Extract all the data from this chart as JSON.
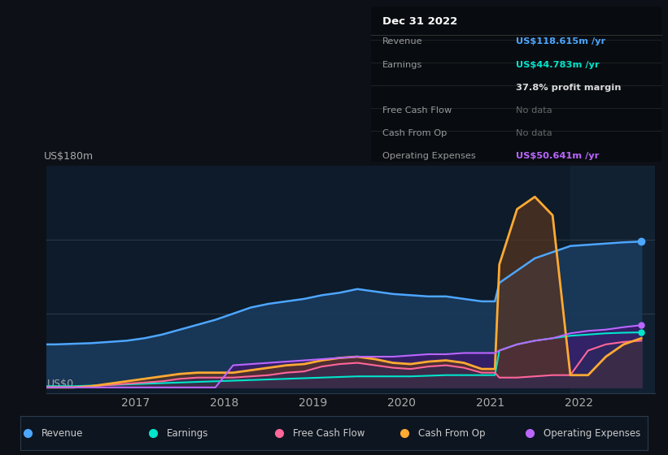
{
  "bg_color": "#0d1117",
  "chart_bg": "#0d1b2a",
  "title": "Dec 31 2022",
  "ylabel": "US$180m",
  "y0_label": "US$0",
  "x_ticks": [
    2017,
    2018,
    2019,
    2020,
    2021,
    2022
  ],
  "x_range": [
    2016.0,
    2022.85
  ],
  "y_range": [
    -5,
    180
  ],
  "legend": [
    {
      "label": "Revenue",
      "color": "#4da6ff"
    },
    {
      "label": "Earnings",
      "color": "#00e5cc"
    },
    {
      "label": "Free Cash Flow",
      "color": "#ff6699"
    },
    {
      "label": "Cash From Op",
      "color": "#ffaa33"
    },
    {
      "label": "Operating Expenses",
      "color": "#bb66ff"
    }
  ],
  "series": {
    "x": [
      2015.9,
      2016.1,
      2016.3,
      2016.5,
      2016.7,
      2016.9,
      2017.1,
      2017.3,
      2017.5,
      2017.7,
      2017.9,
      2018.1,
      2018.3,
      2018.5,
      2018.7,
      2018.9,
      2019.1,
      2019.3,
      2019.5,
      2019.7,
      2019.9,
      2020.1,
      2020.3,
      2020.5,
      2020.7,
      2020.9,
      2021.0,
      2021.05,
      2021.1,
      2021.3,
      2021.5,
      2021.7,
      2021.9,
      2022.1,
      2022.3,
      2022.5,
      2022.7
    ],
    "revenue": [
      35,
      35,
      35.5,
      36,
      37,
      38,
      40,
      43,
      47,
      51,
      55,
      60,
      65,
      68,
      70,
      72,
      75,
      77,
      80,
      78,
      76,
      75,
      74,
      74,
      72,
      70,
      70,
      70,
      85,
      95,
      105,
      110,
      115,
      116,
      117,
      118,
      118.615
    ],
    "earnings": [
      1,
      1,
      1,
      1.5,
      2,
      2.5,
      3,
      3.5,
      4,
      4.5,
      5,
      5.5,
      6,
      6.5,
      7,
      7.5,
      8,
      8.5,
      9,
      9,
      9,
      9,
      9.5,
      10,
      10,
      10,
      10,
      10,
      30,
      35,
      38,
      40,
      42,
      43,
      44,
      44.5,
      44.783
    ],
    "free_cash_flow": [
      0,
      0,
      0,
      1,
      2,
      3,
      4,
      5,
      7,
      8,
      8,
      8,
      9,
      10,
      12,
      13,
      17,
      19,
      20,
      18,
      16,
      15,
      17,
      18,
      16,
      12,
      12,
      12,
      8,
      8,
      9,
      10,
      10,
      30,
      35,
      37,
      38
    ],
    "cash_from_op": [
      0,
      0,
      0,
      1,
      3,
      5,
      7,
      9,
      11,
      12,
      12,
      12,
      14,
      16,
      18,
      19,
      22,
      24,
      25,
      23,
      20,
      19,
      21,
      22,
      20,
      15,
      15,
      15,
      100,
      145,
      155,
      140,
      10,
      10,
      25,
      35,
      40
    ],
    "operating_expenses": [
      0,
      0,
      0,
      0,
      0,
      0,
      0,
      0,
      0,
      0,
      0,
      18,
      19,
      20,
      21,
      22,
      23,
      24,
      25,
      25,
      25,
      26,
      27,
      27,
      28,
      28,
      28,
      28,
      30,
      35,
      38,
      40,
      44,
      46,
      47,
      49,
      50.641
    ]
  }
}
